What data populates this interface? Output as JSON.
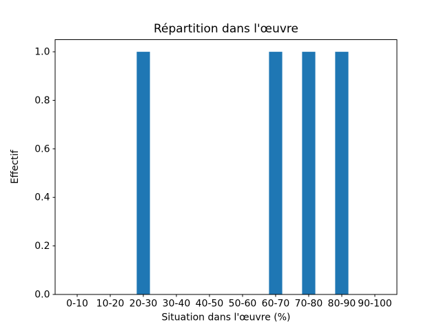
{
  "figure": {
    "background": "#ffffff"
  },
  "chart_data": {
    "type": "bar",
    "title": "Répartition dans l'œuvre",
    "xlabel": "Situation dans l'œuvre (%)",
    "ylabel": "Effectif",
    "categories": [
      "0-10",
      "10-20",
      "20-30",
      "30-40",
      "40-50",
      "50-60",
      "60-70",
      "70-80",
      "80-90",
      "90-100"
    ],
    "values": [
      0,
      0,
      1,
      0,
      0,
      0,
      1,
      1,
      1,
      0
    ],
    "ytick_labels": [
      "0.0",
      "0.2",
      "0.4",
      "0.6",
      "0.8",
      "1.0"
    ],
    "ylim": [
      0,
      1.05
    ],
    "bar_color": "#1f77b4",
    "axis_color": "#000000",
    "grid": false
  }
}
